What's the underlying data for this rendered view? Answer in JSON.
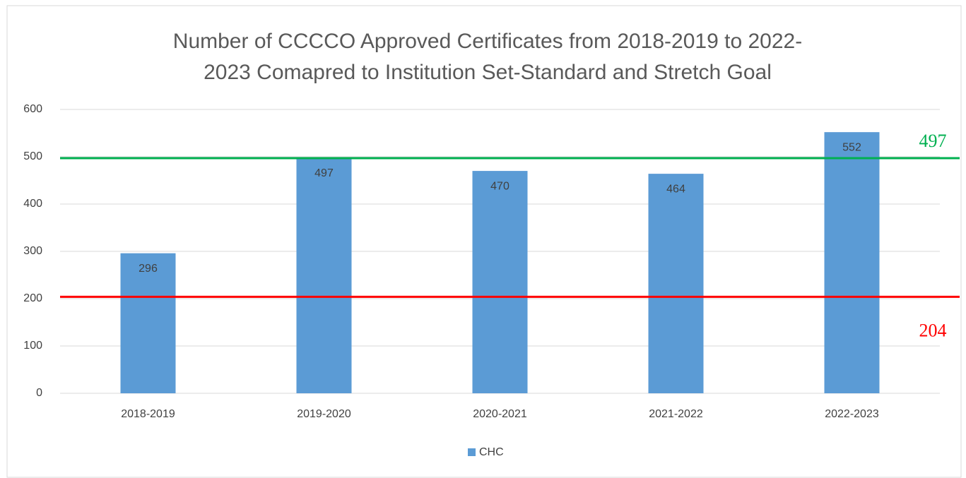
{
  "chart_data": {
    "type": "bar",
    "title": [
      "Number of CCCCO Approved Certificates from 2018-2019 to 2022-",
      "2023 Comapred to Institution Set-Standard and Stretch Goal"
    ],
    "categories": [
      "2018-2019",
      "2019-2020",
      "2020-2021",
      "2021-2022",
      "2022-2023"
    ],
    "series": [
      {
        "name": "CHC",
        "color": "#5b9bd5",
        "values": [
          296,
          497,
          470,
          464,
          552
        ]
      }
    ],
    "ylim": [
      0,
      600
    ],
    "yticks": [
      0,
      100,
      200,
      300,
      400,
      500,
      600
    ],
    "grid": true,
    "reference_lines": [
      {
        "value": 497,
        "color": "#00b050"
      },
      {
        "value": 204,
        "color": "#ff0000"
      }
    ],
    "legend": "bottom"
  }
}
